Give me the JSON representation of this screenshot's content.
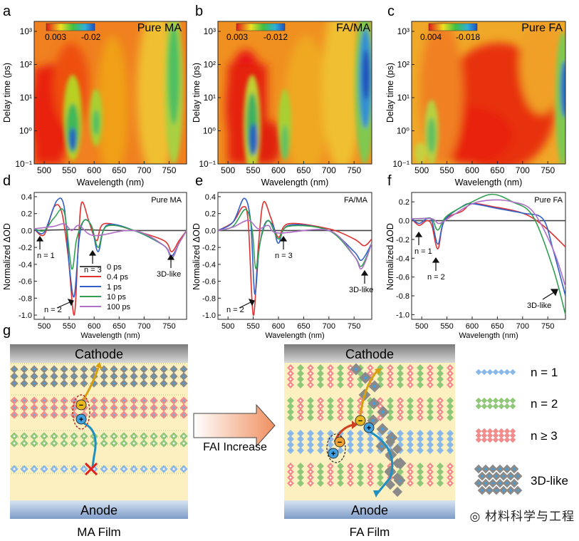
{
  "panels": {
    "a": {
      "label": "a",
      "title": "Pure MA",
      "cb_min": "0.003",
      "cb_max": "-0.02"
    },
    "b": {
      "label": "b",
      "title": "FA/MA",
      "cb_min": "0.003",
      "cb_max": "-0.012"
    },
    "c": {
      "label": "c",
      "title": "Pure FA",
      "cb_min": "0.004",
      "cb_max": "-0.018"
    },
    "d": {
      "label": "d",
      "title": "Pure MA",
      "ann": [
        "n = 1",
        "n = 2",
        "n = 3",
        "3D-like"
      ]
    },
    "e": {
      "label": "e",
      "title": "FA/MA",
      "ann": [
        "n = 2",
        "n = 3",
        "3D-like"
      ]
    },
    "f": {
      "label": "f",
      "title": "Pure FA",
      "ann": [
        "n = 1",
        "n = 2",
        "3D-like"
      ]
    },
    "g": {
      "label": "g"
    }
  },
  "axes": {
    "wavelength_label": "Wavelength (nm)",
    "delay_label": "Delay time (ps)",
    "od_label": "Normalized ΔOD",
    "x_ticks": [
      "500",
      "550",
      "600",
      "650",
      "700",
      "750"
    ],
    "y_map_ticks": [
      "10³",
      "10²",
      "10¹",
      "10⁰",
      "10⁻¹"
    ],
    "y_de_ticks": [
      "0.4",
      "0.2",
      "0.0",
      "-0.2",
      "-0.4",
      "-0.6",
      "-0.8",
      "-1.0"
    ],
    "y_f_ticks": [
      "0.2",
      "0.0",
      "-0.2",
      "-0.4",
      "-0.6",
      "-0.8",
      "-1.0"
    ]
  },
  "legend": [
    "0 ps",
    "0.4 ps",
    "1 ps",
    "10 ps",
    "100 ps"
  ],
  "colors": {
    "0 ps": "#444444",
    "0.4 ps": "#e03030",
    "1 ps": "#3060c8",
    "10 ps": "#30a050",
    "100 ps": "#b070c8"
  },
  "schematic": {
    "cathode": "Cathode",
    "anode": "Anode",
    "arrow_label": "FAI Increase",
    "left_title": "MA Film",
    "right_title": "FA Film",
    "legend": [
      "n = 1",
      "n = 2",
      "n ≥ 3",
      "3D-like"
    ]
  },
  "watermark": "材料科学与工程",
  "chart_data": [
    {
      "type": "heatmap",
      "title": "Pure MA",
      "xlabel": "Wavelength (nm)",
      "ylabel": "Delay time (ps)",
      "xlim": [
        480,
        785
      ],
      "ylim": [
        0.1,
        2000
      ],
      "colorbar": [
        0.003,
        -0.02
      ],
      "features": [
        {
          "x": 555,
          "kind": "bleach",
          "strongest_at_ps": 0.5
        },
        {
          "x": 605,
          "kind": "bleach"
        },
        {
          "x": 755,
          "kind": "bleach"
        }
      ]
    },
    {
      "type": "heatmap",
      "title": "FA/MA",
      "xlabel": "Wavelength (nm)",
      "ylabel": "Delay time (ps)",
      "xlim": [
        480,
        785
      ],
      "ylim": [
        0.1,
        2000
      ],
      "colorbar": [
        0.003,
        -0.012
      ],
      "features": [
        {
          "x": 550,
          "kind": "bleach"
        },
        {
          "x": 600,
          "kind": "bleach"
        },
        {
          "x": 765,
          "kind": "bleach",
          "strongest_at_ps": 300
        }
      ]
    },
    {
      "type": "heatmap",
      "title": "Pure FA",
      "xlabel": "Wavelength (nm)",
      "ylabel": "Delay time (ps)",
      "xlim": [
        480,
        785
      ],
      "ylim": [
        0.1,
        2000
      ],
      "colorbar": [
        0.004,
        -0.018
      ],
      "features": [
        {
          "x": 535,
          "kind": "bleach"
        },
        {
          "x": 780,
          "kind": "bleach"
        }
      ]
    },
    {
      "type": "line",
      "title": "Pure MA",
      "xlabel": "Wavelength (nm)",
      "ylabel": "Normalized ΔOD",
      "ylim": [
        -1.05,
        0.45
      ],
      "xlim": [
        480,
        785
      ],
      "series": [
        {
          "name": "0 ps",
          "points": [
            [
              480,
              0
            ],
            [
              560,
              0.01
            ],
            [
              650,
              0
            ],
            [
              785,
              0
            ]
          ]
        },
        {
          "name": "0.4 ps",
          "points": [
            [
              480,
              0.02
            ],
            [
              500,
              -0.05
            ],
            [
              520,
              0.28
            ],
            [
              535,
              0.22
            ],
            [
              548,
              -0.3
            ],
            [
              560,
              -1.0
            ],
            [
              568,
              -0.2
            ],
            [
              575,
              0.33
            ],
            [
              590,
              0.1
            ],
            [
              605,
              -0.12
            ],
            [
              620,
              0.08
            ],
            [
              680,
              0.0
            ],
            [
              740,
              -0.12
            ],
            [
              755,
              -0.25
            ],
            [
              770,
              -0.12
            ],
            [
              785,
              0
            ]
          ]
        },
        {
          "name": "1 ps",
          "points": [
            [
              480,
              0.02
            ],
            [
              500,
              -0.02
            ],
            [
              525,
              0.35
            ],
            [
              540,
              0.28
            ],
            [
              550,
              -0.4
            ],
            [
              560,
              -0.78
            ],
            [
              570,
              -0.1
            ],
            [
              580,
              0.12
            ],
            [
              595,
              0.05
            ],
            [
              608,
              -0.25
            ],
            [
              625,
              0.06
            ],
            [
              680,
              0.0
            ],
            [
              740,
              -0.18
            ],
            [
              755,
              -0.3
            ],
            [
              770,
              -0.15
            ],
            [
              785,
              0
            ]
          ]
        },
        {
          "name": "10 ps",
          "points": [
            [
              480,
              0.02
            ],
            [
              500,
              0.0
            ],
            [
              520,
              0.15
            ],
            [
              540,
              0.22
            ],
            [
              555,
              -0.45
            ],
            [
              565,
              -0.1
            ],
            [
              580,
              0.12
            ],
            [
              595,
              0.05
            ],
            [
              608,
              -0.2
            ],
            [
              625,
              0.05
            ],
            [
              680,
              0.0
            ],
            [
              740,
              -0.18
            ],
            [
              755,
              -0.33
            ],
            [
              770,
              -0.15
            ],
            [
              785,
              0
            ]
          ]
        },
        {
          "name": "100 ps",
          "points": [
            [
              480,
              0.02
            ],
            [
              520,
              0.05
            ],
            [
              540,
              0.08
            ],
            [
              555,
              0.0
            ],
            [
              570,
              0.06
            ],
            [
              600,
              -0.06
            ],
            [
              680,
              0.0
            ],
            [
              740,
              -0.18
            ],
            [
              755,
              -0.33
            ],
            [
              770,
              -0.15
            ],
            [
              785,
              0
            ]
          ]
        }
      ]
    },
    {
      "type": "line",
      "title": "FA/MA",
      "xlabel": "Wavelength (nm)",
      "ylabel": "Normalized ΔOD",
      "ylim": [
        -1.05,
        0.45
      ],
      "xlim": [
        480,
        785
      ],
      "series": [
        {
          "name": "0 ps",
          "points": [
            [
              480,
              0
            ],
            [
              560,
              0
            ],
            [
              650,
              0
            ],
            [
              785,
              0
            ]
          ]
        },
        {
          "name": "0.4 ps",
          "points": [
            [
              480,
              0.0
            ],
            [
              510,
              0.1
            ],
            [
              530,
              0.28
            ],
            [
              540,
              0.1
            ],
            [
              550,
              -1.0
            ],
            [
              560,
              -0.2
            ],
            [
              570,
              0.33
            ],
            [
              585,
              0.15
            ],
            [
              600,
              -0.08
            ],
            [
              620,
              0.08
            ],
            [
              700,
              0.02
            ],
            [
              750,
              -0.1
            ],
            [
              770,
              -0.18
            ],
            [
              785,
              -0.1
            ]
          ]
        },
        {
          "name": "1 ps",
          "points": [
            [
              480,
              0.0
            ],
            [
              510,
              0.1
            ],
            [
              532,
              0.38
            ],
            [
              545,
              0.1
            ],
            [
              553,
              -0.75
            ],
            [
              562,
              -0.2
            ],
            [
              575,
              0.1
            ],
            [
              590,
              0.05
            ],
            [
              600,
              -0.15
            ],
            [
              620,
              0.06
            ],
            [
              700,
              0.0
            ],
            [
              750,
              -0.25
            ],
            [
              765,
              -0.35
            ],
            [
              785,
              -0.15
            ]
          ]
        },
        {
          "name": "10 ps",
          "points": [
            [
              480,
              0.0
            ],
            [
              510,
              0.05
            ],
            [
              535,
              0.25
            ],
            [
              548,
              0.0
            ],
            [
              555,
              -0.45
            ],
            [
              565,
              -0.1
            ],
            [
              580,
              0.12
            ],
            [
              600,
              -0.1
            ],
            [
              620,
              0.05
            ],
            [
              700,
              0.0
            ],
            [
              750,
              -0.3
            ],
            [
              765,
              -0.42
            ],
            [
              785,
              -0.15
            ]
          ]
        },
        {
          "name": "100 ps",
          "points": [
            [
              480,
              0.0
            ],
            [
              510,
              0.04
            ],
            [
              540,
              0.12
            ],
            [
              560,
              0.02
            ],
            [
              580,
              0.06
            ],
            [
              600,
              -0.03
            ],
            [
              700,
              0.0
            ],
            [
              750,
              -0.3
            ],
            [
              765,
              -0.45
            ],
            [
              785,
              -0.15
            ]
          ]
        }
      ]
    },
    {
      "type": "line",
      "title": "Pure FA",
      "xlabel": "Wavelength (nm)",
      "ylabel": "Normalized ΔOD",
      "ylim": [
        -1.05,
        0.3
      ],
      "xlim": [
        480,
        785
      ],
      "series": [
        {
          "name": "0 ps",
          "points": [
            [
              480,
              0
            ],
            [
              600,
              0
            ],
            [
              700,
              0
            ],
            [
              785,
              0
            ]
          ]
        },
        {
          "name": "0.4 ps",
          "points": [
            [
              480,
              0.02
            ],
            [
              495,
              -0.05
            ],
            [
              510,
              0.0
            ],
            [
              520,
              -0.05
            ],
            [
              532,
              -0.3
            ],
            [
              545,
              0.0
            ],
            [
              580,
              0.1
            ],
            [
              600,
              0.18
            ],
            [
              640,
              0.15
            ],
            [
              700,
              0.08
            ],
            [
              740,
              -0.05
            ],
            [
              785,
              -0.28
            ]
          ]
        },
        {
          "name": "1 ps",
          "points": [
            [
              480,
              0.02
            ],
            [
              495,
              -0.03
            ],
            [
              510,
              0.02
            ],
            [
              520,
              0.0
            ],
            [
              532,
              -0.25
            ],
            [
              545,
              0.0
            ],
            [
              580,
              0.15
            ],
            [
              600,
              0.18
            ],
            [
              650,
              0.13
            ],
            [
              700,
              0.08
            ],
            [
              740,
              0.02
            ],
            [
              760,
              -0.3
            ],
            [
              785,
              -0.8
            ]
          ]
        },
        {
          "name": "10 ps",
          "points": [
            [
              480,
              0.02
            ],
            [
              500,
              0.02
            ],
            [
              520,
              0.02
            ],
            [
              532,
              -0.1
            ],
            [
              550,
              0.05
            ],
            [
              600,
              0.2
            ],
            [
              640,
              0.28
            ],
            [
              680,
              0.2
            ],
            [
              720,
              0.05
            ],
            [
              760,
              -0.5
            ],
            [
              785,
              -1.0
            ]
          ]
        },
        {
          "name": "100 ps",
          "points": [
            [
              480,
              0.02
            ],
            [
              520,
              0.02
            ],
            [
              535,
              -0.03
            ],
            [
              560,
              0.05
            ],
            [
              600,
              0.18
            ],
            [
              640,
              0.22
            ],
            [
              680,
              0.2
            ],
            [
              720,
              0.1
            ],
            [
              760,
              -0.3
            ],
            [
              785,
              -0.7
            ]
          ]
        }
      ]
    }
  ]
}
